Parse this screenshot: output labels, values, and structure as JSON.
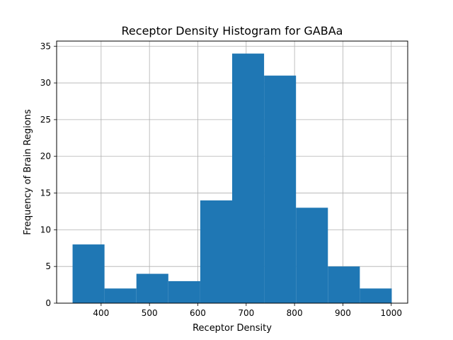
{
  "chart_data": {
    "type": "bar",
    "title": "Receptor Density Histogram for GABAa",
    "xlabel": "Receptor Density",
    "ylabel": "Frequency of Brain Regions",
    "bins": [
      {
        "start": 341,
        "end": 407,
        "count": 8
      },
      {
        "start": 407,
        "end": 473,
        "count": 2
      },
      {
        "start": 473,
        "end": 539,
        "count": 4
      },
      {
        "start": 539,
        "end": 605,
        "count": 3
      },
      {
        "start": 605,
        "end": 671,
        "count": 14
      },
      {
        "start": 671,
        "end": 737,
        "count": 34
      },
      {
        "start": 737,
        "end": 803,
        "count": 31
      },
      {
        "start": 803,
        "end": 869,
        "count": 13
      },
      {
        "start": 869,
        "end": 935,
        "count": 5
      },
      {
        "start": 935,
        "end": 1001,
        "count": 2
      }
    ],
    "xlim": [
      308,
      1034
    ],
    "ylim": [
      0,
      35.7
    ],
    "xticks": [
      "400",
      "500",
      "600",
      "700",
      "800",
      "900",
      "1000"
    ],
    "yticks": [
      "0",
      "5",
      "10",
      "15",
      "20",
      "25",
      "30",
      "35"
    ],
    "grid": true,
    "bar_color": "#1f77b4"
  }
}
